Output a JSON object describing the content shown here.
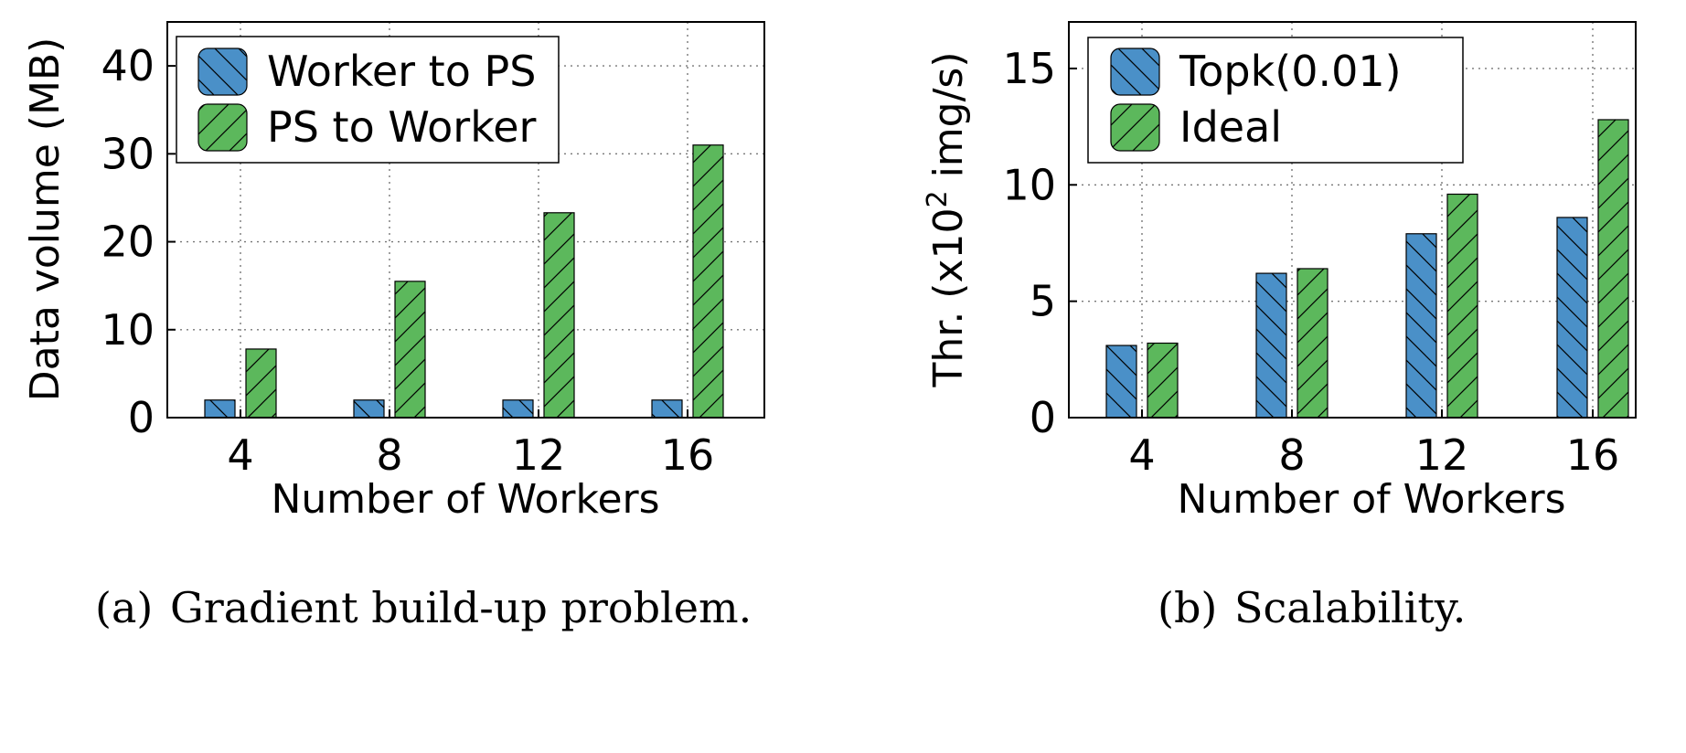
{
  "chart_data": [
    {
      "type": "bar",
      "categories": [
        "4",
        "8",
        "12",
        "16"
      ],
      "series": [
        {
          "name": "Worker to PS",
          "values": [
            2,
            2,
            2,
            2
          ],
          "color": "#4a90c8",
          "hatch": "back-diagonal"
        },
        {
          "name": "PS to Worker",
          "values": [
            7.8,
            15.5,
            23.3,
            31.0
          ],
          "color": "#5cb85c",
          "hatch": "forward-diagonal"
        }
      ],
      "xlabel": "Number of Workers",
      "ylabel": "Data volume (MB)",
      "ylim": [
        0,
        45
      ],
      "yticks": [
        0,
        10,
        20,
        30,
        40
      ],
      "grid": true,
      "legend_position": "top-left",
      "caption_tag": "(a)",
      "caption": "Gradient build-up problem."
    },
    {
      "type": "bar",
      "categories": [
        "4",
        "8",
        "12",
        "16"
      ],
      "series": [
        {
          "name": "Topk(0.01)",
          "values": [
            3.1,
            6.2,
            7.9,
            8.6
          ],
          "color": "#4a90c8",
          "hatch": "back-diagonal"
        },
        {
          "name": "Ideal",
          "values": [
            3.2,
            6.4,
            9.6,
            12.8
          ],
          "color": "#5cb85c",
          "hatch": "forward-diagonal"
        }
      ],
      "xlabel": "Number of Workers",
      "ylabel_prefix": "Thr. (x10",
      "ylabel_sup": "2",
      "ylabel_suffix": " img/s)",
      "ylim": [
        0,
        17
      ],
      "yticks": [
        0,
        5,
        10,
        15
      ],
      "grid": true,
      "legend_position": "top-left",
      "caption_tag": "(b)",
      "caption": "Scalability."
    }
  ]
}
